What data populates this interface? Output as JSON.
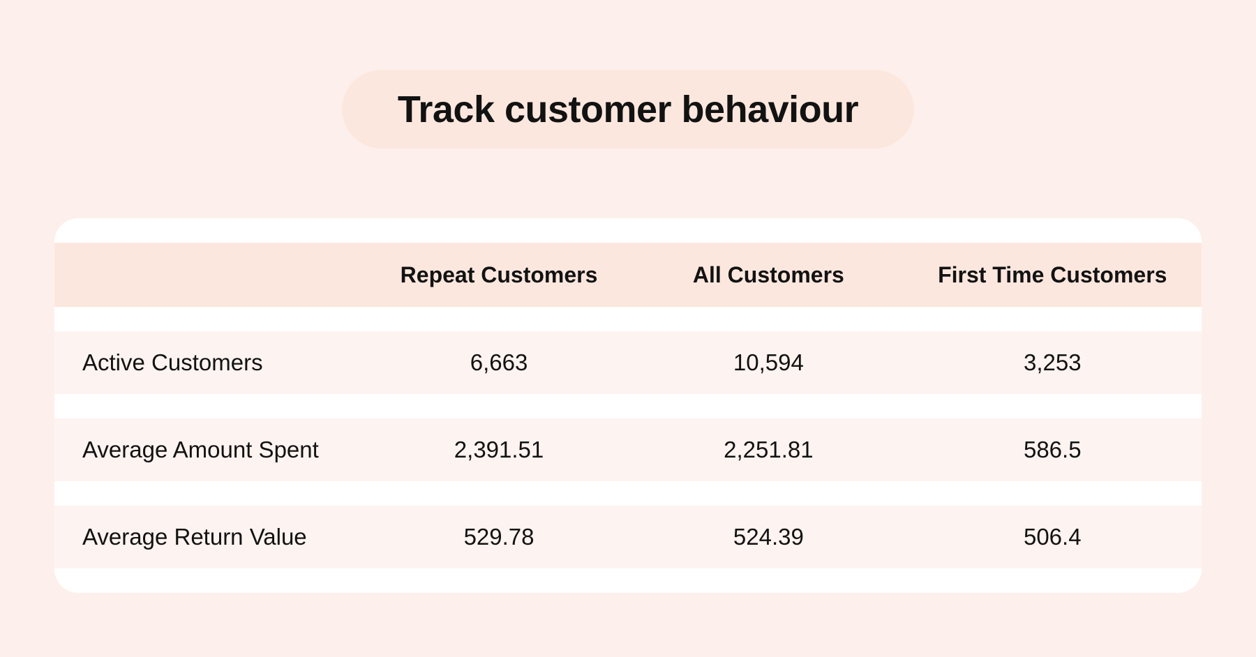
{
  "title": "Track customer behaviour",
  "chart_data": {
    "type": "table",
    "title": "Track customer behaviour",
    "columns": [
      "",
      "Repeat Customers",
      "All Customers",
      "First Time Customers"
    ],
    "rows": [
      {
        "label": "Active Customers",
        "values": [
          "6,663",
          "10,594",
          "3,253"
        ]
      },
      {
        "label": "Average Amount Spent",
        "values": [
          "2,391.51",
          "2,251.81",
          "586.5"
        ]
      },
      {
        "label": "Average Return Value",
        "values": [
          "529.78",
          "524.39",
          "506.4"
        ]
      }
    ]
  },
  "colors": {
    "page_background": "#fdf0ec",
    "accent_peach": "#fce7de",
    "row_background": "#fdf3f0",
    "card_background": "#ffffff",
    "text": "#121212"
  }
}
